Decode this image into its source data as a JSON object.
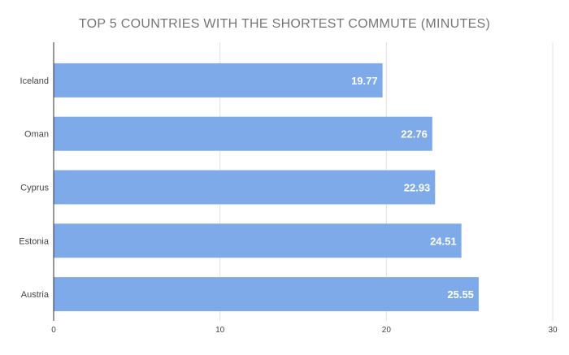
{
  "chart_data": {
    "type": "bar",
    "orientation": "horizontal",
    "title": "TOP 5 COUNTRIES WITH THE SHORTEST COMMUTE (MINUTES)",
    "categories": [
      "Iceland",
      "Oman",
      "Cyprus",
      "Estonia",
      "Austria"
    ],
    "values": [
      19.77,
      22.76,
      22.93,
      24.51,
      25.55
    ],
    "data_labels": [
      "19.77",
      "22.76",
      "22.93",
      "24.51",
      "25.55"
    ],
    "x_ticks": [
      "0",
      "10",
      "20",
      "30"
    ],
    "xlim": [
      0,
      30
    ],
    "xlabel": "",
    "ylabel": "",
    "grid": true,
    "legend": "none",
    "colors": {
      "bar": "#7faaea",
      "grid": "#e0e0e0",
      "axis": "#333333",
      "label": "#444444",
      "data_label": "#ffffff",
      "title": "#757575"
    }
  }
}
